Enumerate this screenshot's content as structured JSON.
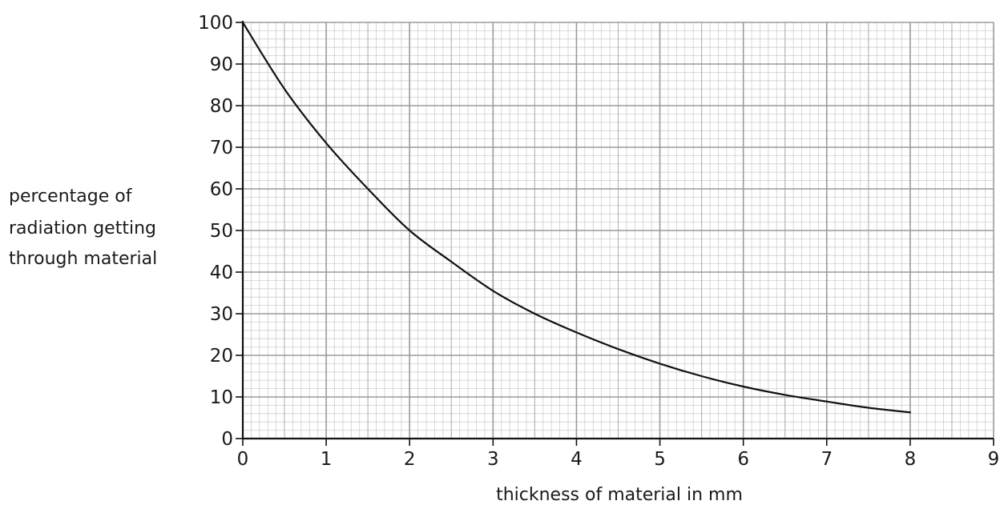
{
  "chart_data": {
    "type": "line",
    "title": "",
    "xlabel": "thickness of material in mm",
    "ylabel_lines": [
      "percentage of",
      "radiation getting",
      "through material"
    ],
    "xlim": [
      0,
      9
    ],
    "ylim": [
      0,
      100
    ],
    "x_ticks": [
      "0",
      "1",
      "2",
      "3",
      "4",
      "5",
      "6",
      "7",
      "8",
      "9"
    ],
    "y_ticks": [
      "0",
      "10",
      "20",
      "30",
      "40",
      "50",
      "60",
      "70",
      "80",
      "90",
      "100"
    ],
    "grid": true,
    "series": [
      {
        "x": [
          0,
          0.5,
          1,
          1.5,
          2,
          2.5,
          3,
          3.5,
          4,
          4.5,
          5,
          5.5,
          6,
          6.5,
          7,
          7.5,
          8
        ],
        "y": [
          100,
          84,
          71,
          60,
          50,
          42.5,
          35.5,
          30,
          25.5,
          21.5,
          18,
          15,
          12.5,
          10.5,
          8.9,
          7.4,
          6.3
        ]
      }
    ]
  }
}
